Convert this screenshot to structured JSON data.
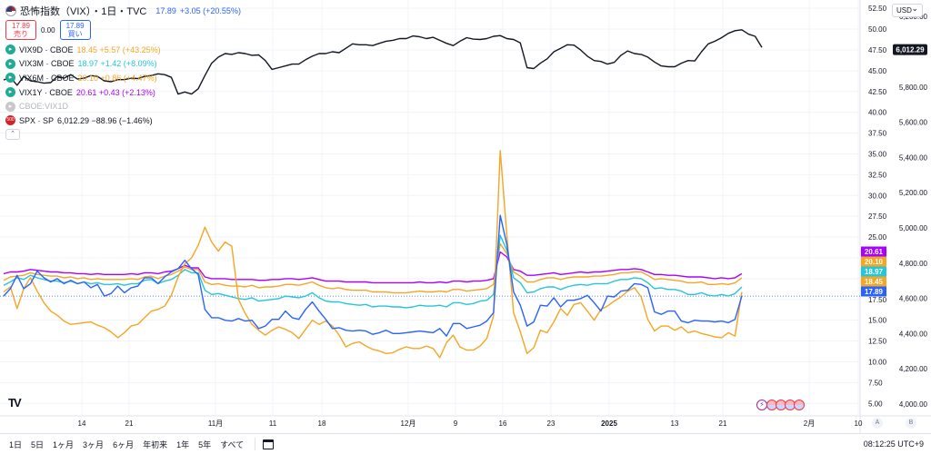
{
  "header": {
    "title": "恐怖指数（VIX）・1日・TVC",
    "price": "17.89",
    "change": "+3.05 (+20.55%)",
    "sell_price": "17.89",
    "sell_label": "売り",
    "spread": "0.00",
    "buy_price": "17.89",
    "buy_label": "買い"
  },
  "legend": [
    {
      "name": "VIX9D · CBOE",
      "values": "18.45 +5.57 (+43.25%)",
      "color": "#f5a623",
      "icon": "chevron-right-icon"
    },
    {
      "name": "VIX3M · CBOE",
      "values": "18.97 +1.42 (+8.09%)",
      "color": "#26c6da",
      "icon": "chevron-right-icon"
    },
    {
      "name": "VIX6M · CBOE",
      "values": "20.10 +0.86 (+4.47%)",
      "color": "#f5a623",
      "icon": "chevron-right-icon"
    },
    {
      "name": "VIX1Y · CBOE",
      "values": "20.61 +0.43 (+2.13%)",
      "color": "#aa00ff",
      "icon": "chevron-right-icon"
    },
    {
      "name": "CBOE:VIX1D",
      "values": "",
      "color": "#b2b5be",
      "icon": "chevron-right-icon"
    },
    {
      "name": "SPX · SP",
      "values": "6,012.29 −88.96 (−1.46%)",
      "color": "#131722",
      "icon": "spx-icon"
    }
  ],
  "currency": "USD",
  "periods": [
    "1日",
    "5日",
    "1ヶ月",
    "3ヶ月",
    "6ヶ月",
    "年初来",
    "1年",
    "5年",
    "すべて"
  ],
  "clock": "08:12:25 UTC+9",
  "colors": {
    "spx": "#131722",
    "vix": "#2962ff",
    "vix9d": "#f5a623",
    "vix3m": "#26c6da",
    "vix6m": "#f5a623",
    "vix1y": "#aa00ff",
    "grid": "#f0f3fa"
  },
  "chart_data": {
    "type": "line",
    "x_ticks": [
      "14",
      "21",
      "11月",
      "11",
      "18",
      "12月",
      "9",
      "16",
      "23",
      "2025",
      "13",
      "21",
      "2月",
      "10"
    ],
    "y_left": {
      "ticks": [
        5,
        7.5,
        10,
        12.5,
        15,
        17.5,
        20,
        22.5,
        25,
        27.5,
        30,
        32.5,
        35,
        37.5,
        40,
        42.5,
        45,
        47.5,
        50,
        52.5
      ],
      "range": [
        3.5,
        53.5
      ]
    },
    "y_right": {
      "ticks": [
        4000,
        4200,
        4400,
        4600,
        4800,
        5000,
        5200,
        5400,
        5600,
        5800,
        6000,
        6200
      ],
      "range": [
        3933,
        6294
      ]
    },
    "series": [
      {
        "name": "SPX",
        "axis": "right",
        "color": "#131722",
        "values": [
          5840,
          5855,
          5810,
          5860,
          5835,
          5830,
          5822,
          5825,
          5860,
          5850,
          5870,
          5845,
          5850,
          5865,
          5860,
          5835,
          5830,
          5842,
          5842,
          5850,
          5848,
          5860,
          5865,
          5875,
          5870,
          5855,
          5760,
          5772,
          5760,
          5790,
          5865,
          5935,
          5970,
          5990,
          5985,
          5995,
          5990,
          5980,
          5982,
          5950,
          5900,
          5910,
          5920,
          5930,
          5930,
          5955,
          5975,
          5990,
          5990,
          6000,
          5995,
          6020,
          6045,
          6040,
          6040,
          6035,
          6048,
          6060,
          6065,
          6075,
          6075,
          6090,
          6085,
          6075,
          6082,
          6065,
          6048,
          6035,
          6060,
          6080,
          6072,
          6070,
          6075,
          6088,
          6092,
          6075,
          6070,
          6050,
          5910,
          5905,
          5935,
          5960,
          6000,
          6020,
          6040,
          6038,
          6010,
          5975,
          5950,
          5945,
          5930,
          5940,
          5980,
          6005,
          5990,
          5985,
          5970,
          5942,
          5920,
          5915,
          5915,
          5935,
          5950,
          5948,
          6000,
          6045,
          6060,
          6080,
          6105,
          6120,
          6125,
          6100,
          6088,
          6025
        ]
      },
      {
        "name": "VIX",
        "axis": "left",
        "color": "#2962ff",
        "values": [
          17.9,
          18.8,
          20.4,
          18.8,
          19.4,
          20.9,
          20.1,
          19.6,
          20.0,
          19.4,
          19.8,
          19.4,
          19.6,
          18.9,
          19.3,
          17.9,
          18.2,
          19.1,
          18.3,
          18.9,
          19.1,
          20.1,
          20.1,
          19.4,
          20.2,
          20.8,
          21.2,
          22.2,
          21.2,
          20.5,
          16.3,
          15.3,
          15.3,
          15.0,
          14.9,
          15.2,
          14.9,
          15.0,
          14.0,
          14.3,
          15.1,
          15.1,
          16.1,
          15.3,
          15.1,
          16.3,
          17.2,
          16.1,
          15.1,
          14.0,
          14.1,
          13.8,
          13.7,
          13.8,
          13.7,
          13.3,
          13.5,
          13.8,
          13.4,
          13.4,
          13.5,
          13.6,
          13.7,
          13.6,
          13.5,
          14.0,
          13.1,
          14.6,
          14.6,
          14.0,
          14.2,
          14.4,
          14.9,
          15.9,
          27.6,
          24.1,
          18.4,
          16.8,
          14.3,
          14.8,
          16.8,
          16.7,
          17.7,
          16.6,
          17.4,
          17.4,
          17.6,
          18.0,
          17.1,
          16.1,
          17.9,
          17.8,
          18.5,
          18.6,
          19.4,
          19.3,
          18.9,
          16.0,
          15.7,
          16.1,
          16.1,
          14.9,
          14.7,
          15.0,
          14.9,
          14.9,
          14.8,
          14.9,
          14.7,
          15.1,
          17.9
        ]
      },
      {
        "name": "VIX9D",
        "axis": "left",
        "color": "#f5a623",
        "values": [
          18.4,
          19.0,
          16.4,
          18.8,
          20.1,
          18.5,
          17.1,
          16.1,
          15.6,
          14.9,
          14.5,
          14.6,
          14.7,
          14.8,
          14.4,
          14.1,
          13.6,
          12.9,
          13.5,
          14.3,
          14.5,
          15.3,
          16.1,
          16.3,
          16.7,
          18.0,
          20.2,
          21.8,
          22.5,
          24.0,
          26.2,
          24.4,
          23.3,
          24.4,
          23.9,
          17.5,
          15.8,
          14.5,
          13.8,
          13.2,
          13.8,
          14.2,
          13.9,
          13.5,
          12.8,
          13.9,
          15.0,
          14.5,
          14.9,
          14.3,
          13.2,
          11.8,
          12.2,
          12.4,
          11.9,
          11.5,
          11.3,
          11.0,
          11.1,
          11.5,
          11.8,
          11.6,
          11.6,
          11.9,
          11.6,
          10.5,
          12.3,
          13.2,
          11.8,
          11.4,
          11.4,
          11.9,
          12.8,
          15.5,
          35.4,
          25.2,
          15.9,
          13.6,
          11.0,
          11.7,
          13.8,
          13.5,
          14.8,
          16.4,
          15.6,
          16.9,
          17.1,
          16.1,
          15.0,
          16.3,
          16.7,
          17.3,
          17.8,
          18.5,
          18.9,
          17.8,
          15.1,
          13.7,
          14.3,
          14.3,
          13.8,
          14.2,
          13.5,
          13.7,
          13.4,
          13.2,
          13.0,
          12.9,
          13.5,
          13.1,
          18.4
        ]
      },
      {
        "name": "VIX3M",
        "axis": "left",
        "color": "#26c6da",
        "values": [
          19.2,
          19.6,
          20.1,
          19.9,
          20.4,
          20.1,
          19.9,
          19.7,
          19.7,
          19.5,
          19.7,
          19.4,
          19.6,
          19.4,
          19.5,
          19.3,
          19.3,
          19.4,
          19.2,
          19.4,
          19.4,
          19.8,
          19.9,
          19.4,
          19.7,
          19.9,
          20.4,
          21.1,
          20.7,
          20.7,
          18.6,
          18.1,
          18.2,
          18.0,
          17.8,
          17.6,
          17.5,
          17.7,
          17.3,
          17.4,
          17.5,
          17.6,
          17.9,
          17.8,
          17.7,
          17.9,
          18.3,
          17.7,
          17.3,
          17.2,
          17.2,
          17.0,
          16.9,
          16.8,
          16.9,
          16.6,
          16.7,
          16.7,
          16.6,
          16.6,
          16.5,
          16.6,
          16.8,
          16.7,
          16.7,
          16.8,
          16.6,
          17.1,
          17.1,
          16.9,
          17.0,
          17.3,
          17.4,
          18.1,
          25.2,
          23.4,
          20.1,
          19.5,
          18.3,
          18.4,
          18.8,
          19.0,
          19.0,
          18.7,
          19.0,
          19.2,
          19.3,
          19.2,
          19.4,
          19.4,
          19.4,
          19.7,
          19.9,
          19.9,
          20.1,
          20.0,
          19.5,
          18.8,
          18.9,
          18.7,
          18.7,
          18.5,
          18.1,
          18.1,
          18.3,
          18.0,
          17.9,
          18.1,
          17.9,
          18.2,
          19.0
        ]
      },
      {
        "name": "VIX6M",
        "axis": "left",
        "color": "#f5a623",
        "values": [
          19.8,
          20.2,
          20.3,
          20.4,
          20.7,
          20.5,
          20.4,
          20.3,
          20.3,
          20.1,
          20.2,
          20.0,
          20.1,
          19.9,
          20.0,
          19.9,
          19.9,
          19.9,
          19.9,
          20.0,
          19.9,
          20.2,
          20.3,
          20.0,
          20.3,
          20.5,
          20.9,
          21.4,
          21.1,
          21.1,
          19.6,
          19.3,
          19.4,
          19.2,
          19.1,
          19.1,
          19.0,
          19.2,
          18.9,
          19.0,
          19.0,
          19.1,
          19.3,
          19.3,
          19.2,
          19.4,
          19.6,
          19.2,
          18.9,
          18.8,
          18.9,
          18.7,
          18.6,
          18.6,
          18.6,
          18.4,
          18.4,
          18.4,
          18.3,
          18.3,
          18.3,
          18.4,
          18.5,
          18.4,
          18.4,
          18.5,
          18.4,
          18.7,
          18.7,
          18.5,
          18.6,
          18.7,
          18.8,
          19.3,
          24.2,
          23.0,
          20.8,
          20.3,
          19.6,
          19.6,
          19.9,
          20.1,
          20.1,
          19.9,
          20.1,
          20.2,
          20.2,
          20.2,
          20.3,
          20.3,
          20.4,
          20.5,
          20.7,
          20.7,
          20.8,
          20.8,
          20.4,
          19.9,
          20.0,
          19.9,
          19.8,
          19.7,
          19.5,
          19.5,
          19.6,
          19.3,
          19.3,
          19.4,
          19.3,
          19.5,
          20.1
        ]
      },
      {
        "name": "VIX1Y",
        "axis": "left",
        "color": "#aa00ff",
        "values": [
          20.6,
          20.8,
          20.8,
          20.9,
          21.1,
          21.0,
          20.9,
          20.8,
          20.8,
          20.7,
          20.7,
          20.6,
          20.6,
          20.5,
          20.6,
          20.5,
          20.5,
          20.5,
          20.5,
          20.6,
          20.5,
          20.7,
          20.7,
          20.6,
          20.8,
          20.9,
          21.2,
          21.6,
          21.3,
          21.3,
          20.2,
          20.0,
          20.0,
          20.0,
          19.9,
          19.9,
          19.9,
          19.9,
          19.8,
          19.8,
          19.9,
          19.9,
          20.0,
          20.0,
          19.9,
          20.0,
          20.1,
          19.9,
          19.7,
          19.7,
          19.7,
          19.6,
          19.6,
          19.6,
          19.6,
          19.5,
          19.5,
          19.5,
          19.5,
          19.5,
          19.5,
          19.5,
          19.6,
          19.5,
          19.5,
          19.6,
          19.5,
          19.7,
          19.7,
          19.6,
          19.7,
          19.7,
          19.8,
          20.0,
          23.2,
          22.6,
          21.1,
          20.9,
          20.4,
          20.4,
          20.5,
          20.6,
          20.7,
          20.5,
          20.6,
          20.7,
          20.8,
          20.7,
          20.8,
          20.8,
          20.9,
          21.0,
          21.1,
          21.1,
          21.2,
          21.1,
          20.8,
          20.5,
          20.5,
          20.4,
          20.4,
          20.3,
          20.2,
          20.2,
          20.2,
          20.1,
          20.0,
          20.1,
          20.0,
          20.1,
          20.6
        ]
      }
    ],
    "last_value_labels": [
      {
        "value": 20.61,
        "text": "20.61",
        "color": "#aa00ff"
      },
      {
        "value": 20.1,
        "text": "20.10",
        "color": "#f5a623"
      },
      {
        "value": 18.97,
        "text": "18.97",
        "color": "#26c6da"
      },
      {
        "value": 18.45,
        "text": "18.45",
        "color": "#f5a623"
      },
      {
        "value": 17.89,
        "text": "17.89",
        "color": "#2962ff"
      }
    ],
    "spx_last_label": {
      "value": 6012.29,
      "text": "6,012.29"
    },
    "scale_buttons": [
      "A",
      "B"
    ]
  }
}
